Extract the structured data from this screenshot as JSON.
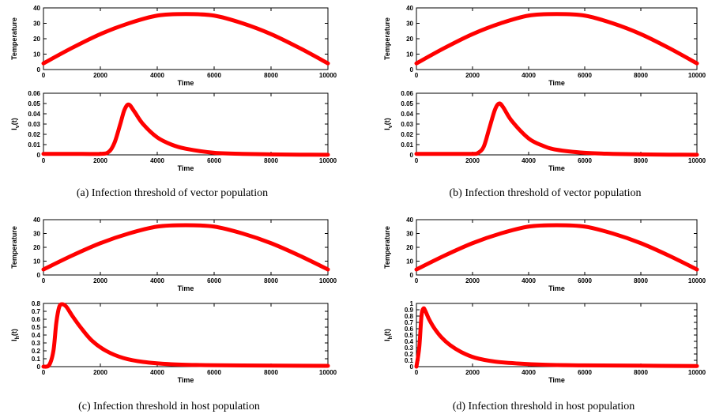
{
  "colors": {
    "series": "#ff0000",
    "axis": "#000000"
  },
  "captions": [
    "(a) Infection threshold of vector population",
    "(b) Infection threshold of vector population",
    "(c) Infection threshold in host population",
    "(d) Infection threshold in host population"
  ],
  "chart_data": [
    {
      "type": "line",
      "panel": "a-top",
      "xlabel": "Time",
      "ylabel": "Temperature",
      "ylabel_sub": "",
      "xlim": [
        0,
        10000
      ],
      "ylim": [
        0,
        40
      ],
      "xticks": [
        0,
        2000,
        4000,
        6000,
        8000,
        10000
      ],
      "yticks": [
        0,
        10,
        20,
        30,
        40
      ],
      "series": [
        {
          "values_x": [
            0,
            1000,
            2000,
            3000,
            4000,
            5000,
            6000,
            7000,
            8000,
            9000,
            10000
          ],
          "values_y": [
            4,
            14,
            23,
            30,
            35,
            36,
            35,
            30,
            23,
            14,
            4
          ]
        }
      ]
    },
    {
      "type": "line",
      "panel": "a-bottom",
      "xlabel": "Time",
      "ylabel": "I",
      "ylabel_sub": "v",
      "ylabel_suffix": "(t)",
      "xlim": [
        0,
        10000
      ],
      "ylim": [
        0,
        0.06
      ],
      "xticks": [
        0,
        2000,
        4000,
        6000,
        8000,
        10000
      ],
      "yticks": [
        0,
        0.01,
        0.02,
        0.03,
        0.04,
        0.05,
        0.06
      ],
      "series": [
        {
          "values_x": [
            0,
            1000,
            2000,
            2300,
            2500,
            2700,
            2850,
            3000,
            3200,
            3500,
            4000,
            4500,
            5000,
            6000,
            7000,
            8000,
            9000,
            10000
          ],
          "values_y": [
            0.001,
            0.001,
            0.001,
            0.003,
            0.012,
            0.03,
            0.044,
            0.049,
            0.042,
            0.03,
            0.017,
            0.01,
            0.006,
            0.002,
            0.001,
            0.0005,
            0.0002,
            0.0001
          ]
        }
      ]
    },
    {
      "type": "line",
      "panel": "b-top",
      "xlabel": "Time",
      "ylabel": "Temperature",
      "ylabel_sub": "",
      "xlim": [
        0,
        10000
      ],
      "ylim": [
        0,
        40
      ],
      "xticks": [
        0,
        2000,
        4000,
        6000,
        8000,
        10000
      ],
      "yticks": [
        0,
        10,
        20,
        30,
        40
      ],
      "series": [
        {
          "values_x": [
            0,
            1000,
            2000,
            3000,
            4000,
            5000,
            6000,
            7000,
            8000,
            9000,
            10000
          ],
          "values_y": [
            4,
            14,
            23,
            30,
            35,
            36,
            35,
            30,
            23,
            14,
            4
          ]
        }
      ]
    },
    {
      "type": "line",
      "panel": "b-bottom",
      "xlabel": "Time",
      "ylabel": "I",
      "ylabel_sub": "v",
      "ylabel_suffix": "(t)",
      "xlim": [
        0,
        10000
      ],
      "ylim": [
        0,
        0.06
      ],
      "xticks": [
        0,
        2000,
        4000,
        6000,
        8000,
        10000
      ],
      "yticks": [
        0,
        0.01,
        0.02,
        0.03,
        0.04,
        0.05,
        0.06
      ],
      "series": [
        {
          "values_x": [
            0,
            1000,
            2000,
            2200,
            2400,
            2600,
            2800,
            2950,
            3100,
            3400,
            4000,
            4500,
            5000,
            6000,
            7000,
            8000,
            9000,
            10000
          ],
          "values_y": [
            0.001,
            0.001,
            0.001,
            0.002,
            0.008,
            0.026,
            0.044,
            0.05,
            0.046,
            0.033,
            0.016,
            0.009,
            0.005,
            0.002,
            0.001,
            0.0005,
            0.0002,
            0.0001
          ]
        }
      ]
    },
    {
      "type": "line",
      "panel": "c-top",
      "xlabel": "Time",
      "ylabel": "Temperature",
      "ylabel_sub": "",
      "xlim": [
        0,
        10000
      ],
      "ylim": [
        0,
        40
      ],
      "xticks": [
        0,
        2000,
        4000,
        6000,
        8000,
        10000
      ],
      "yticks": [
        0,
        10,
        20,
        30,
        40
      ],
      "series": [
        {
          "values_x": [
            0,
            1000,
            2000,
            3000,
            4000,
            5000,
            6000,
            7000,
            8000,
            9000,
            10000
          ],
          "values_y": [
            4,
            14,
            23,
            30,
            35,
            36,
            35,
            30,
            23,
            14,
            4
          ]
        }
      ]
    },
    {
      "type": "line",
      "panel": "c-bottom",
      "xlabel": "Time",
      "ylabel": "I",
      "ylabel_sub": "h",
      "ylabel_suffix": "(t)",
      "xlim": [
        0,
        10000
      ],
      "ylim": [
        0,
        0.8
      ],
      "xticks": [
        0,
        2000,
        4000,
        6000,
        8000,
        10000
      ],
      "yticks": [
        0,
        0.1,
        0.2,
        0.3,
        0.4,
        0.5,
        0.6,
        0.7,
        0.8
      ],
      "series": [
        {
          "values_x": [
            0,
            200,
            350,
            450,
            550,
            650,
            800,
            1000,
            1300,
            1700,
            2200,
            2800,
            3500,
            4500,
            5500,
            7000,
            10000
          ],
          "values_y": [
            0,
            0.02,
            0.2,
            0.55,
            0.75,
            0.79,
            0.76,
            0.65,
            0.5,
            0.33,
            0.2,
            0.11,
            0.06,
            0.03,
            0.02,
            0.015,
            0.01
          ]
        }
      ]
    },
    {
      "type": "line",
      "panel": "d-top",
      "xlabel": "Time",
      "ylabel": "Temperature",
      "ylabel_sub": "",
      "xlim": [
        0,
        10000
      ],
      "ylim": [
        0,
        40
      ],
      "xticks": [
        0,
        2000,
        4000,
        6000,
        8000,
        10000
      ],
      "yticks": [
        0,
        10,
        20,
        30,
        40
      ],
      "series": [
        {
          "values_x": [
            0,
            1000,
            2000,
            3000,
            4000,
            5000,
            6000,
            7000,
            8000,
            9000,
            10000
          ],
          "values_y": [
            4,
            14,
            23,
            30,
            35,
            36,
            35,
            30,
            23,
            14,
            4
          ]
        }
      ]
    },
    {
      "type": "line",
      "panel": "d-bottom",
      "xlabel": "Time",
      "ylabel": "I",
      "ylabel_sub": "h",
      "ylabel_suffix": "(t)",
      "xlim": [
        0,
        10000
      ],
      "ylim": [
        0,
        1
      ],
      "xticks": [
        0,
        2000,
        4000,
        6000,
        8000,
        10000
      ],
      "yticks": [
        0,
        0.1,
        0.2,
        0.3,
        0.4,
        0.5,
        0.6,
        0.7,
        0.8,
        0.9,
        1
      ],
      "series": [
        {
          "values_x": [
            0,
            100,
            180,
            250,
            320,
            450,
            650,
            900,
            1200,
            1600,
            2100,
            2800,
            3600,
            4600,
            6000,
            8000,
            10000
          ],
          "values_y": [
            0,
            0.3,
            0.8,
            0.92,
            0.88,
            0.75,
            0.6,
            0.46,
            0.34,
            0.23,
            0.14,
            0.08,
            0.05,
            0.03,
            0.02,
            0.015,
            0.01
          ]
        }
      ]
    }
  ]
}
